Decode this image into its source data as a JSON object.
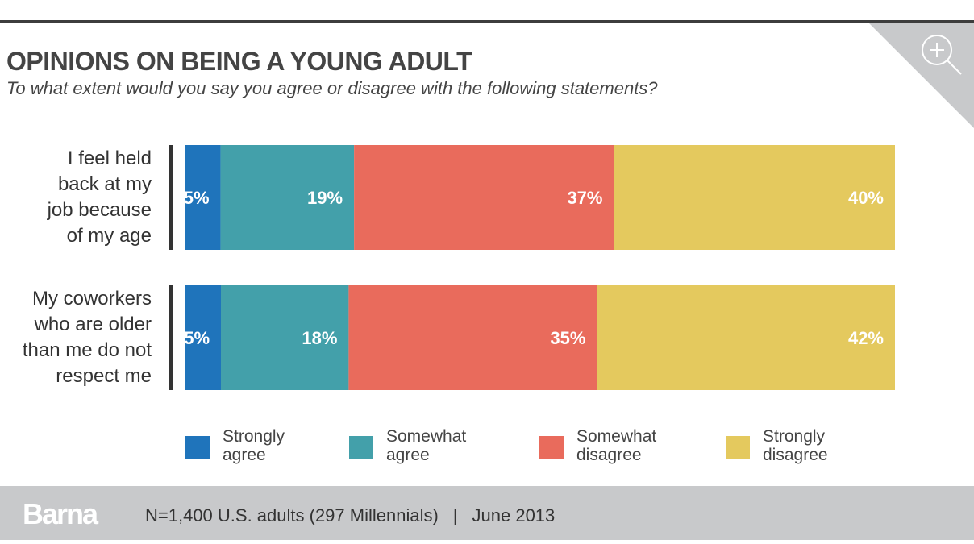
{
  "header": {
    "title": "OPINIONS ON BEING A YOUNG ADULT",
    "subtitle": "To what extent would you say you agree or disagree with the following statements?",
    "zoom_icon": "zoom-in-icon"
  },
  "colors": {
    "strongly_agree": "#1f74bb",
    "somewhat_agree": "#43a0aa",
    "somewhat_disagree": "#e96b5c",
    "strongly_disagree": "#e4c95e",
    "corner": "#c8c9cb",
    "footer_bg": "#c8c9cb"
  },
  "chart_data": {
    "type": "bar",
    "orientation": "horizontal",
    "stacked": true,
    "title": "OPINIONS ON BEING A YOUNG ADULT",
    "subtitle": "To what extent would you say you agree or disagree with the following statements?",
    "xlabel": "",
    "ylabel": "",
    "unit": "%",
    "grid": false,
    "legend_position": "bottom",
    "categories": [
      "I feel held back at my job because of my age",
      "My coworkers who are older than me do not respect me"
    ],
    "category_lines": [
      [
        "I feel held",
        "back at my",
        "job because",
        "of my age"
      ],
      [
        "My coworkers",
        "who are older",
        "than me do not",
        "respect me"
      ]
    ],
    "series": [
      {
        "name": "Strongly agree",
        "legend_lines": [
          "Strongly",
          "agree"
        ],
        "color": "#1f74bb",
        "values": [
          5,
          5
        ],
        "labels": [
          "5%",
          "5%"
        ]
      },
      {
        "name": "Somewhat agree",
        "legend_lines": [
          "Somewhat",
          "agree"
        ],
        "color": "#43a0aa",
        "values": [
          19,
          18
        ],
        "labels": [
          "19%",
          "18%"
        ]
      },
      {
        "name": "Somewhat disagree",
        "legend_lines": [
          "Somewhat",
          "disagree"
        ],
        "color": "#e96b5c",
        "values": [
          37,
          35
        ],
        "labels": [
          "37%",
          "35%"
        ]
      },
      {
        "name": "Strongly disagree",
        "legend_lines": [
          "Strongly",
          "disagree"
        ],
        "color": "#e4c95e",
        "values": [
          40,
          42
        ],
        "labels": [
          "40%",
          "42%"
        ]
      }
    ]
  },
  "footer": {
    "logo": "Barna",
    "sample": "N=1,400 U.S. adults (297 Millennials)",
    "separator": "|",
    "date": "June 2013"
  }
}
